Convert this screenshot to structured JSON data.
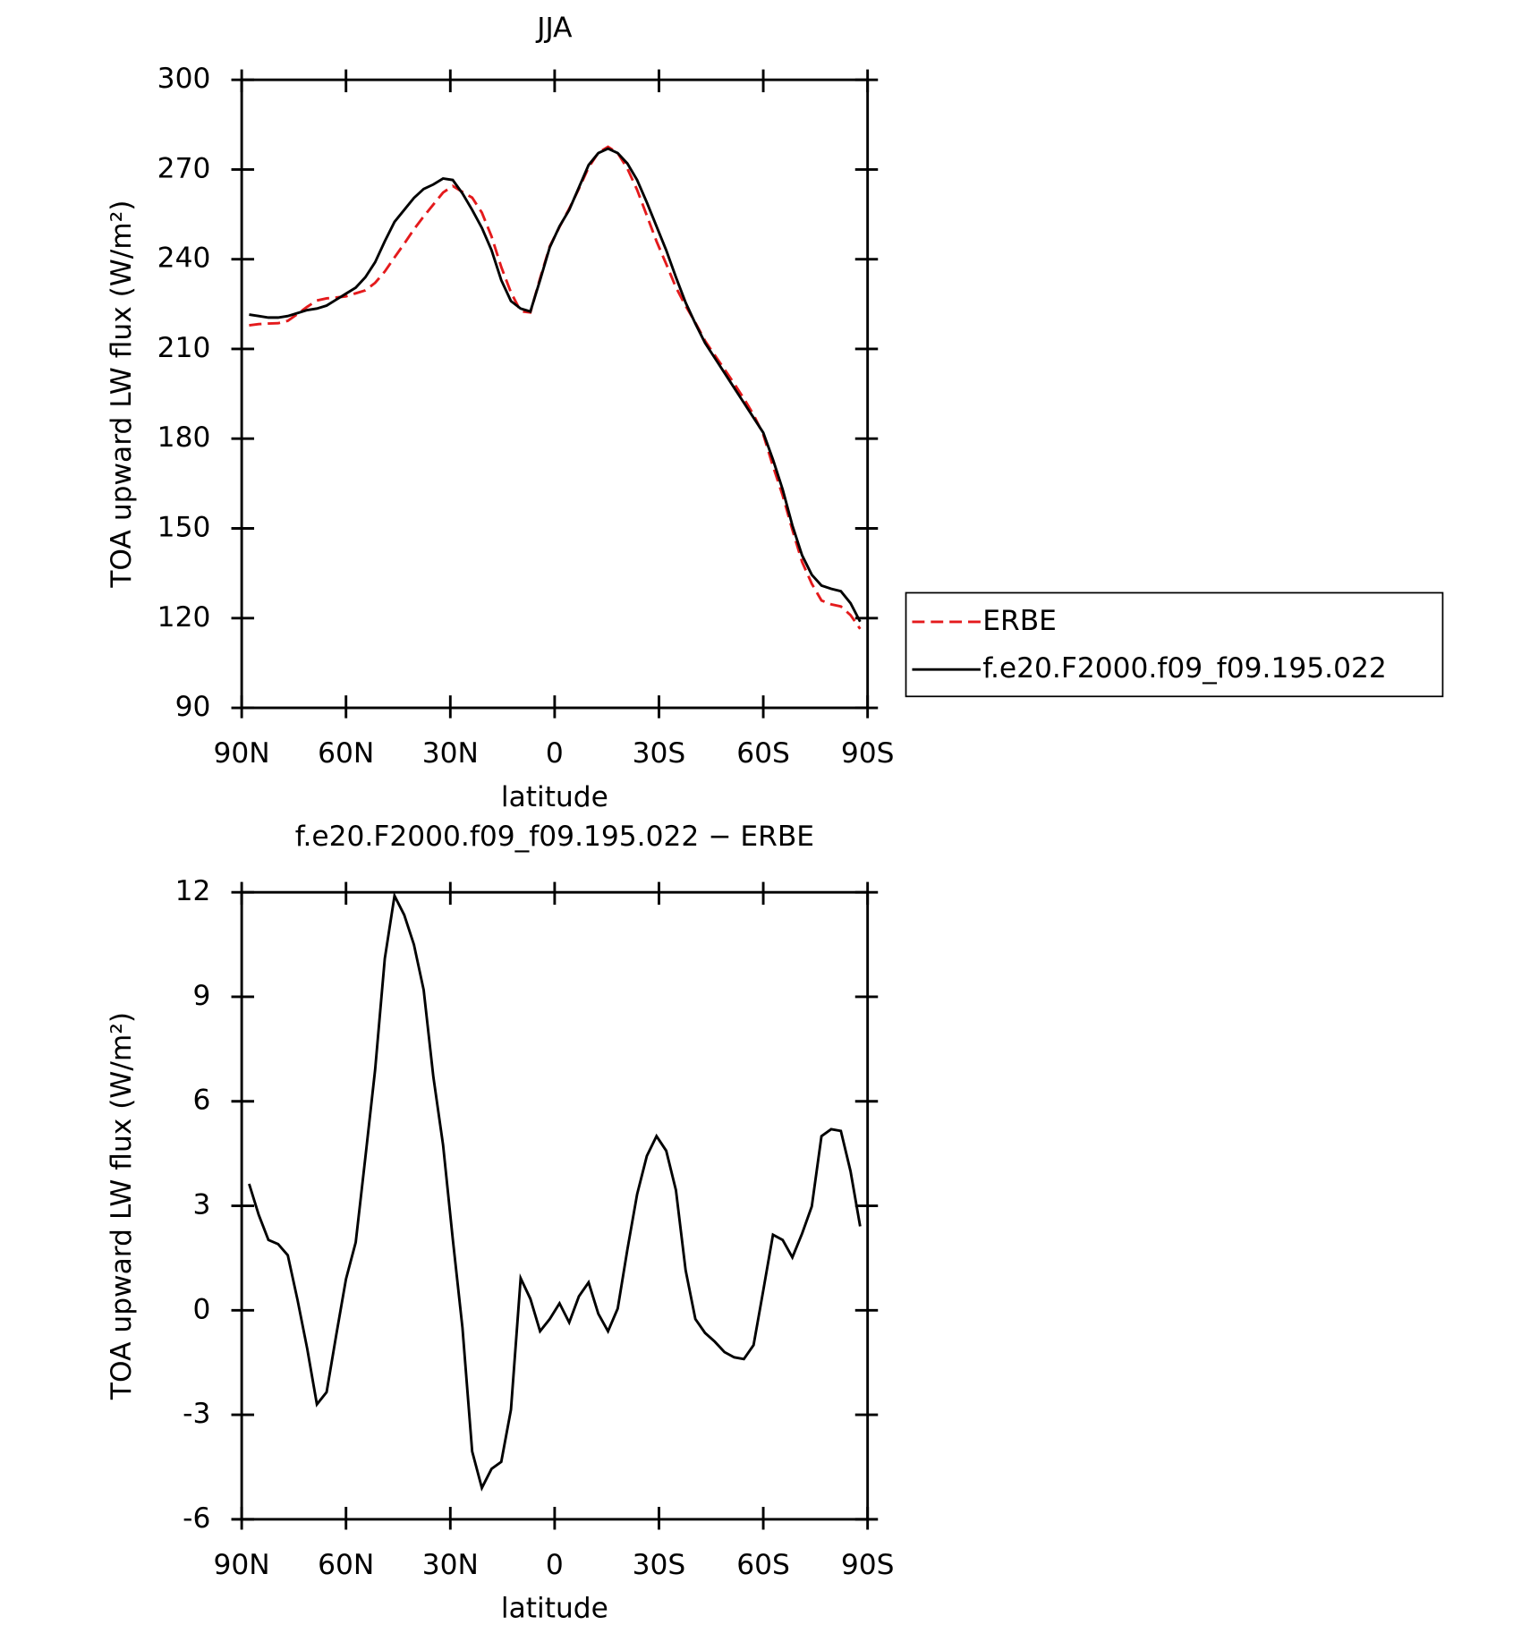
{
  "chart_data": [
    {
      "type": "line",
      "title": "JJA",
      "xlabel": "latitude",
      "ylabel": "TOA upward LW flux (W/m²)",
      "x": [
        87.86,
        85.1,
        82.31,
        79.53,
        76.74,
        73.95,
        71.16,
        68.37,
        65.58,
        62.79,
        60.0,
        57.21,
        54.42,
        51.63,
        48.84,
        46.05,
        43.26,
        40.47,
        37.67,
        34.88,
        32.09,
        29.3,
        26.51,
        23.72,
        20.93,
        18.14,
        15.35,
        12.56,
        9.77,
        6.98,
        4.19,
        1.4,
        -1.4,
        -4.19,
        -6.98,
        -9.77,
        -12.56,
        -15.35,
        -18.14,
        -20.93,
        -23.72,
        -26.51,
        -29.3,
        -32.09,
        -34.88,
        -37.67,
        -40.47,
        -43.26,
        -46.05,
        -48.84,
        -51.63,
        -54.42,
        -57.21,
        -60.0,
        -62.79,
        -65.58,
        -68.37,
        -71.16,
        -73.95,
        -76.74,
        -79.53,
        -82.31,
        -85.1,
        -87.86
      ],
      "series": [
        {
          "name": "ERBE",
          "color": "#e41a1c",
          "line_style": "dashed",
          "values": [
            217.9,
            218.3,
            218.5,
            218.6,
            219.4,
            221.7,
            224.1,
            226.2,
            226.9,
            227.2,
            227.6,
            228.6,
            229.6,
            232.1,
            235.9,
            240.6,
            245.2,
            250.0,
            254.3,
            258.3,
            262.3,
            264.5,
            262.5,
            260.6,
            255.6,
            247.6,
            237.4,
            228.9,
            222.6,
            222.2,
            233.6,
            244.3,
            250.8,
            256.9,
            263.6,
            270.7,
            275.6,
            277.6,
            275.5,
            270.3,
            263.2,
            254.6,
            246.0,
            238.4,
            230.6,
            224.4,
            218.8,
            212.7,
            207.9,
            203.2,
            198.4,
            193.4,
            188.0,
            181.4,
            170.8,
            161.0,
            149.5,
            138.8,
            131.5,
            125.9,
            124.6,
            123.9,
            121.0,
            116.4
          ]
        },
        {
          "name": "f.e20.F2000.f09_f09.195.022",
          "color": "#000000",
          "line_style": "solid",
          "values": [
            221.5,
            221.0,
            220.5,
            220.5,
            221.0,
            222.0,
            223.0,
            223.5,
            224.5,
            226.5,
            228.5,
            230.5,
            234.0,
            239.0,
            246.0,
            252.5,
            256.5,
            260.5,
            263.5,
            265.0,
            267.0,
            266.5,
            262.0,
            256.5,
            250.5,
            243.0,
            233.0,
            226.0,
            223.5,
            222.5,
            233.0,
            244.0,
            251.0,
            256.5,
            264.0,
            271.5,
            275.5,
            277.0,
            275.5,
            272.0,
            266.5,
            259.0,
            251.0,
            243.0,
            234.0,
            225.5,
            218.5,
            212.0,
            207.0,
            202.0,
            197.0,
            192.0,
            187.0,
            182.0,
            173.0,
            163.0,
            151.0,
            141.0,
            134.5,
            130.9,
            129.8,
            129.0,
            125.0,
            118.8
          ]
        }
      ],
      "xlim": [
        90,
        -90
      ],
      "xticks": [
        {
          "value": 90,
          "label": "90N"
        },
        {
          "value": 60,
          "label": "60N"
        },
        {
          "value": 30,
          "label": "30N"
        },
        0,
        {
          "value": -30,
          "label": "30S"
        },
        {
          "value": -60,
          "label": "60S"
        },
        {
          "value": -90,
          "label": "90S"
        }
      ],
      "ylim": [
        90,
        300
      ],
      "yticks": [
        90,
        120,
        150,
        180,
        210,
        240,
        270,
        300
      ],
      "legend": "right"
    },
    {
      "type": "line",
      "title": "f.e20.F2000.f09_f09.195.022 − ERBE",
      "xlabel": "latitude",
      "ylabel": "TOA upward LW flux (W/m²)",
      "x": [
        87.86,
        85.1,
        82.31,
        79.53,
        76.74,
        73.95,
        71.16,
        68.37,
        65.58,
        62.79,
        60.0,
        57.21,
        54.42,
        51.63,
        48.84,
        46.05,
        43.26,
        40.47,
        37.67,
        34.88,
        32.09,
        29.3,
        26.51,
        23.72,
        20.93,
        18.14,
        15.35,
        12.56,
        9.77,
        6.98,
        4.19,
        1.4,
        -1.4,
        -4.19,
        -6.98,
        -9.77,
        -12.56,
        -15.35,
        -18.14,
        -20.93,
        -23.72,
        -26.51,
        -29.3,
        -32.09,
        -34.88,
        -37.67,
        -40.47,
        -43.26,
        -46.05,
        -48.84,
        -51.63,
        -54.42,
        -57.21,
        -60.0,
        -62.79,
        -65.58,
        -68.37,
        -71.16,
        -73.95,
        -76.74,
        -79.53,
        -82.31,
        -85.1,
        -87.86
      ],
      "series": [
        {
          "color": "#000000",
          "line_style": "solid",
          "values": [
            3.63,
            2.74,
            2.02,
            1.9,
            1.58,
            0.3,
            -1.1,
            -2.7,
            -2.35,
            -0.7,
            0.9,
            1.95,
            4.4,
            6.9,
            10.1,
            11.9,
            11.35,
            10.5,
            9.2,
            6.7,
            4.75,
            2.05,
            -0.5,
            -4.05,
            -5.1,
            -4.55,
            -4.35,
            -2.85,
            0.92,
            0.33,
            -0.6,
            -0.25,
            0.2,
            -0.35,
            0.4,
            0.8,
            -0.1,
            -0.6,
            0.05,
            1.75,
            3.33,
            4.43,
            5.0,
            4.58,
            3.45,
            1.15,
            -0.25,
            -0.65,
            -0.9,
            -1.2,
            -1.35,
            -1.4,
            -1.0,
            0.57,
            2.17,
            2.02,
            1.52,
            2.2,
            2.98,
            5.0,
            5.2,
            5.15,
            3.99,
            2.41
          ]
        }
      ],
      "xlim": [
        90,
        -90
      ],
      "xticks": [
        {
          "value": 90,
          "label": "90N"
        },
        {
          "value": 60,
          "label": "60N"
        },
        {
          "value": 30,
          "label": "30N"
        },
        0,
        {
          "value": -30,
          "label": "30S"
        },
        {
          "value": -60,
          "label": "60S"
        },
        {
          "value": -90,
          "label": "90S"
        }
      ],
      "ylim": [
        -6,
        12
      ],
      "yticks": [
        -6,
        -3,
        0,
        3,
        6,
        9,
        12
      ]
    }
  ]
}
